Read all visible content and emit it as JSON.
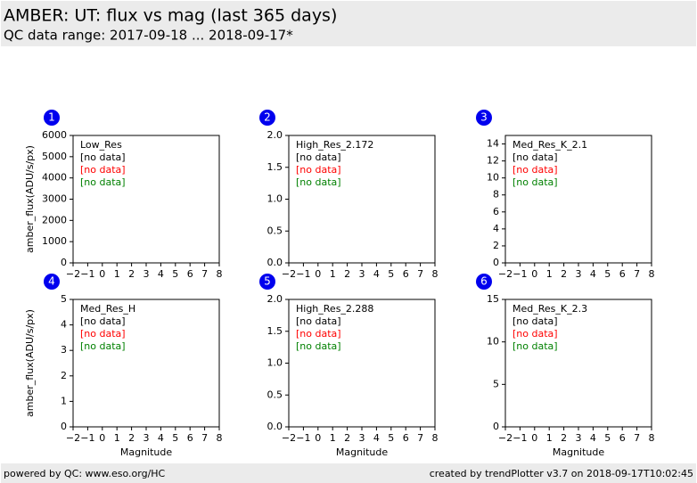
{
  "header": {
    "title": "AMBER: UT: flux vs mag (last 365 days)",
    "subtitle": "QC data range: 2017-09-18 ... 2018-09-17*"
  },
  "footer": {
    "left": "powered by QC: www.eso.org/HC",
    "right": "created by trendPlotter v3.7 on 2018-09-17T10:02:45"
  },
  "chart_data": [
    {
      "type": "scatter",
      "panel": "1",
      "label": "Low_Res",
      "ylabel": "amber_flux(ADU/s/px)",
      "annotations": [
        {
          "text": "[no data]",
          "color": "#000000"
        },
        {
          "text": "[no data]",
          "color": "#ff0000"
        },
        {
          "text": "[no data]",
          "color": "#008000"
        }
      ],
      "xlim": [
        -2,
        8
      ],
      "xticks": [
        {
          "value": -2,
          "label": "−2"
        },
        {
          "value": -1,
          "label": "−1"
        },
        0,
        1,
        2,
        3,
        4,
        5,
        6,
        7,
        8
      ],
      "ylim": [
        0,
        6000
      ],
      "yticks": [
        0,
        1000,
        2000,
        3000,
        4000,
        5000,
        6000
      ]
    },
    {
      "type": "scatter",
      "panel": "2",
      "label": "High_Res_2.172",
      "annotations": [
        {
          "text": "[no data]",
          "color": "#000000"
        },
        {
          "text": "[no data]",
          "color": "#ff0000"
        },
        {
          "text": "[no data]",
          "color": "#008000"
        }
      ],
      "xlim": [
        -2,
        8
      ],
      "xticks": [
        {
          "value": -2,
          "label": "−2"
        },
        {
          "value": -1,
          "label": "−1"
        },
        0,
        1,
        2,
        3,
        4,
        5,
        6,
        7,
        8
      ],
      "ylim": [
        0,
        2
      ],
      "yticks": [
        {
          "value": 0,
          "label": "0.0"
        },
        0.5,
        {
          "value": 1,
          "label": "1.0"
        },
        1.5,
        {
          "value": 2,
          "label": "2.0"
        }
      ]
    },
    {
      "type": "scatter",
      "panel": "3",
      "label": "Med_Res_K_2.1",
      "annotations": [
        {
          "text": "[no data]",
          "color": "#000000"
        },
        {
          "text": "[no data]",
          "color": "#ff0000"
        },
        {
          "text": "[no data]",
          "color": "#008000"
        }
      ],
      "xlim": [
        -2,
        8
      ],
      "xticks": [
        {
          "value": -2,
          "label": "−2"
        },
        {
          "value": -1,
          "label": "−1"
        },
        0,
        1,
        2,
        3,
        4,
        5,
        6,
        7,
        8
      ],
      "ylim": [
        0,
        15
      ],
      "yticks": [
        0,
        2,
        4,
        6,
        8,
        10,
        12,
        14
      ]
    },
    {
      "type": "scatter",
      "panel": "4",
      "label": "Med_Res_H",
      "ylabel": "amber_flux(ADU/s/px)",
      "xlabel": "Magnitude",
      "annotations": [
        {
          "text": "[no data]",
          "color": "#000000"
        },
        {
          "text": "[no data]",
          "color": "#ff0000"
        },
        {
          "text": "[no data]",
          "color": "#008000"
        }
      ],
      "xlim": [
        -2,
        8
      ],
      "xticks": [
        {
          "value": -2,
          "label": "−2"
        },
        {
          "value": -1,
          "label": "−1"
        },
        0,
        1,
        2,
        3,
        4,
        5,
        6,
        7,
        8
      ],
      "ylim": [
        0,
        5
      ],
      "yticks": [
        0,
        1,
        2,
        3,
        4,
        5
      ]
    },
    {
      "type": "scatter",
      "panel": "5",
      "label": "High_Res_2.288",
      "xlabel": "Magnitude",
      "annotations": [
        {
          "text": "[no data]",
          "color": "#000000"
        },
        {
          "text": "[no data]",
          "color": "#ff0000"
        },
        {
          "text": "[no data]",
          "color": "#008000"
        }
      ],
      "xlim": [
        -2,
        8
      ],
      "xticks": [
        {
          "value": -2,
          "label": "−2"
        },
        {
          "value": -1,
          "label": "−1"
        },
        0,
        1,
        2,
        3,
        4,
        5,
        6,
        7,
        8
      ],
      "ylim": [
        0,
        2
      ],
      "yticks": [
        {
          "value": 0,
          "label": "0.0"
        },
        0.5,
        {
          "value": 1,
          "label": "1.0"
        },
        1.5,
        {
          "value": 2,
          "label": "2.0"
        }
      ]
    },
    {
      "type": "scatter",
      "panel": "6",
      "label": "Med_Res_K_2.3",
      "xlabel": "Magnitude",
      "annotations": [
        {
          "text": "[no data]",
          "color": "#000000"
        },
        {
          "text": "[no data]",
          "color": "#ff0000"
        },
        {
          "text": "[no data]",
          "color": "#008000"
        }
      ],
      "xlim": [
        -2,
        8
      ],
      "xticks": [
        {
          "value": -2,
          "label": "−2"
        },
        {
          "value": -1,
          "label": "−1"
        },
        0,
        1,
        2,
        3,
        4,
        5,
        6,
        7,
        8
      ],
      "ylim": [
        0,
        15
      ],
      "yticks": [
        0,
        5,
        10,
        15
      ]
    }
  ]
}
